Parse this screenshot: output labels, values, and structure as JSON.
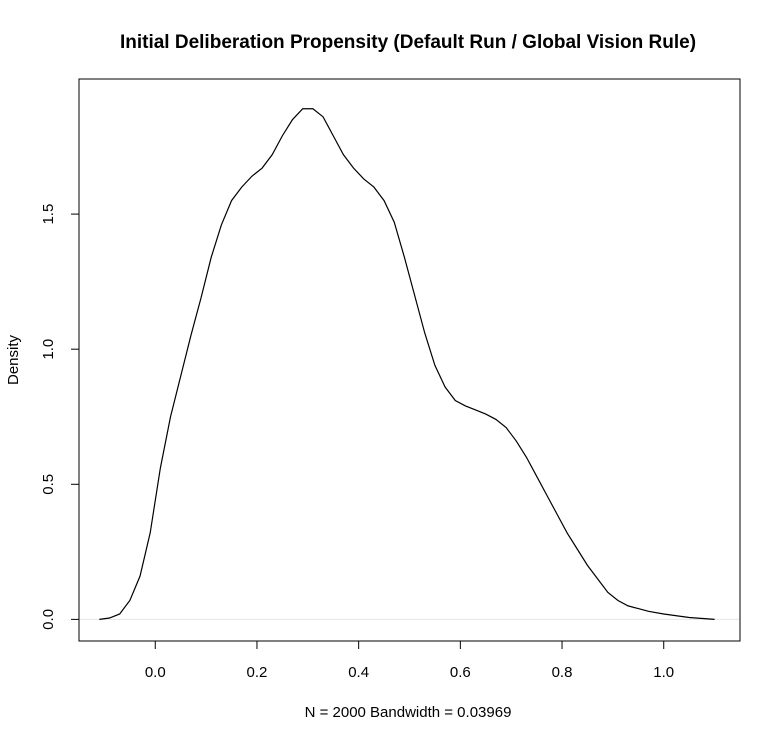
{
  "chart_data": {
    "type": "line",
    "title": "Initial Deliberation Propensity (Default Run / Global Vision Rule)",
    "xlabel": "N = 2000   Bandwidth = 0.03969",
    "ylabel": "Density",
    "xlim": [
      -0.15,
      1.15
    ],
    "ylim": [
      -0.08,
      2.0
    ],
    "x_ticks": [
      0.0,
      0.2,
      0.4,
      0.6,
      0.8,
      1.0
    ],
    "x_tick_labels": [
      "0.0",
      "0.2",
      "0.4",
      "0.6",
      "0.8",
      "1.0"
    ],
    "y_ticks": [
      0.0,
      0.5,
      1.0,
      1.5
    ],
    "y_tick_labels": [
      "0.0",
      "0.5",
      "1.0",
      "1.5"
    ],
    "grid": false,
    "legend": "none",
    "baseline": 0.0,
    "colors": {
      "line": "#000000",
      "baseline": "#e6e6e6",
      "frame": "#000000"
    },
    "series": [
      {
        "x": [
          -0.11,
          -0.09,
          -0.07,
          -0.05,
          -0.03,
          -0.01,
          0.01,
          0.03,
          0.05,
          0.07,
          0.09,
          0.11,
          0.13,
          0.15,
          0.17,
          0.19,
          0.21,
          0.23,
          0.25,
          0.27,
          0.29,
          0.31,
          0.33,
          0.35,
          0.37,
          0.39,
          0.41,
          0.43,
          0.45,
          0.47,
          0.49,
          0.51,
          0.53,
          0.55,
          0.57,
          0.59,
          0.61,
          0.63,
          0.65,
          0.67,
          0.69,
          0.71,
          0.73,
          0.75,
          0.77,
          0.79,
          0.81,
          0.83,
          0.85,
          0.87,
          0.89,
          0.91,
          0.93,
          0.95,
          0.97,
          1.0,
          1.05,
          1.1
        ],
        "y": [
          0.0,
          0.005,
          0.02,
          0.07,
          0.16,
          0.32,
          0.56,
          0.75,
          0.9,
          1.05,
          1.19,
          1.34,
          1.46,
          1.55,
          1.6,
          1.64,
          1.67,
          1.72,
          1.79,
          1.85,
          1.89,
          1.89,
          1.86,
          1.79,
          1.72,
          1.67,
          1.63,
          1.6,
          1.55,
          1.47,
          1.34,
          1.2,
          1.06,
          0.94,
          0.86,
          0.81,
          0.79,
          0.775,
          0.76,
          0.74,
          0.71,
          0.66,
          0.6,
          0.53,
          0.46,
          0.39,
          0.32,
          0.26,
          0.2,
          0.15,
          0.1,
          0.07,
          0.05,
          0.04,
          0.03,
          0.02,
          0.007,
          0.0
        ]
      }
    ]
  }
}
